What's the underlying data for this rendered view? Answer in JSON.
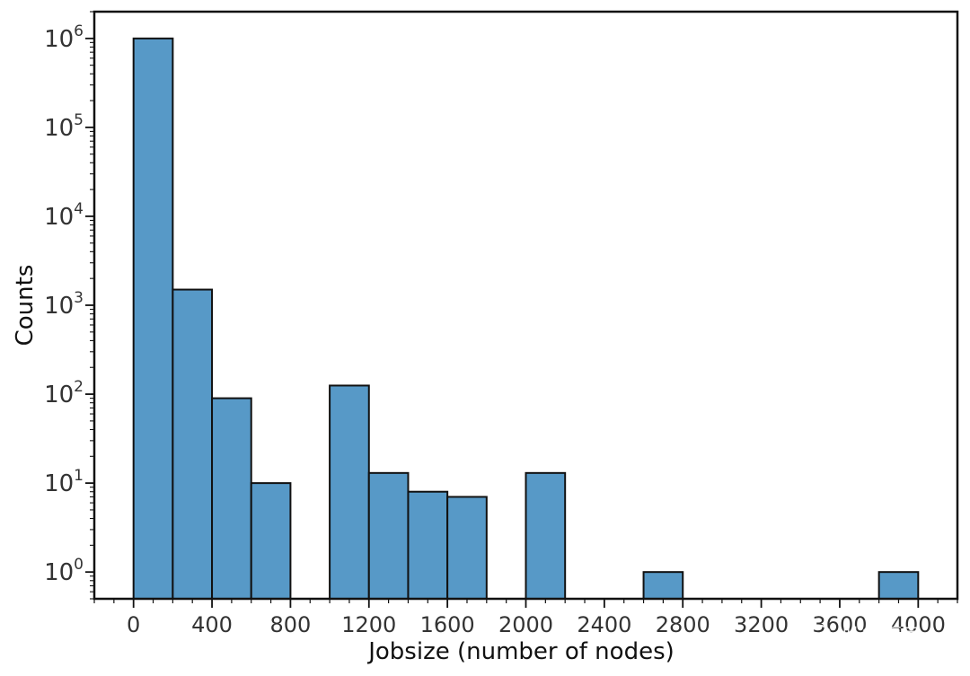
{
  "chart_data": {
    "type": "bar",
    "title": "",
    "xlabel": "Jobsize (number of nodes)",
    "ylabel": "Counts",
    "yscale": "log",
    "xlim": [
      -200,
      4200
    ],
    "ylim": [
      0.5,
      2000000
    ],
    "bin_width": 200,
    "bar_color": "#5799c7",
    "edge_color": "#111111",
    "grid": false,
    "legend": "none",
    "x_ticks": [
      {
        "value": 0,
        "label": "0"
      },
      {
        "value": 400,
        "label": "400"
      },
      {
        "value": 800,
        "label": "800"
      },
      {
        "value": 1200,
        "label": "1200"
      },
      {
        "value": 1600,
        "label": "1600"
      },
      {
        "value": 2000,
        "label": "2000"
      },
      {
        "value": 2400,
        "label": "2400"
      },
      {
        "value": 2800,
        "label": "2800"
      },
      {
        "value": 3200,
        "label": "3200"
      },
      {
        "value": 3600,
        "label": "3600"
      },
      {
        "value": 4000,
        "label": "4000"
      }
    ],
    "y_ticks": [
      {
        "value": 1,
        "base": "10",
        "exp": "0"
      },
      {
        "value": 10,
        "base": "10",
        "exp": "1"
      },
      {
        "value": 100,
        "base": "10",
        "exp": "2"
      },
      {
        "value": 1000,
        "base": "10",
        "exp": "3"
      },
      {
        "value": 10000,
        "base": "10",
        "exp": "4"
      },
      {
        "value": 100000,
        "base": "10",
        "exp": "5"
      },
      {
        "value": 1000000,
        "base": "10",
        "exp": "6"
      }
    ],
    "bins": [
      {
        "start": 0,
        "end": 200,
        "count": 1000000
      },
      {
        "start": 200,
        "end": 400,
        "count": 1500
      },
      {
        "start": 400,
        "end": 600,
        "count": 90
      },
      {
        "start": 600,
        "end": 800,
        "count": 10
      },
      {
        "start": 1000,
        "end": 1200,
        "count": 125
      },
      {
        "start": 1200,
        "end": 1400,
        "count": 13
      },
      {
        "start": 1400,
        "end": 1600,
        "count": 8
      },
      {
        "start": 1600,
        "end": 1800,
        "count": 7
      },
      {
        "start": 2000,
        "end": 2200,
        "count": 13
      },
      {
        "start": 2600,
        "end": 2800,
        "count": 1
      },
      {
        "start": 3800,
        "end": 4000,
        "count": 1
      }
    ]
  },
  "watermark": {
    "text": "吐德福居",
    "icon": "wechat-icon"
  }
}
